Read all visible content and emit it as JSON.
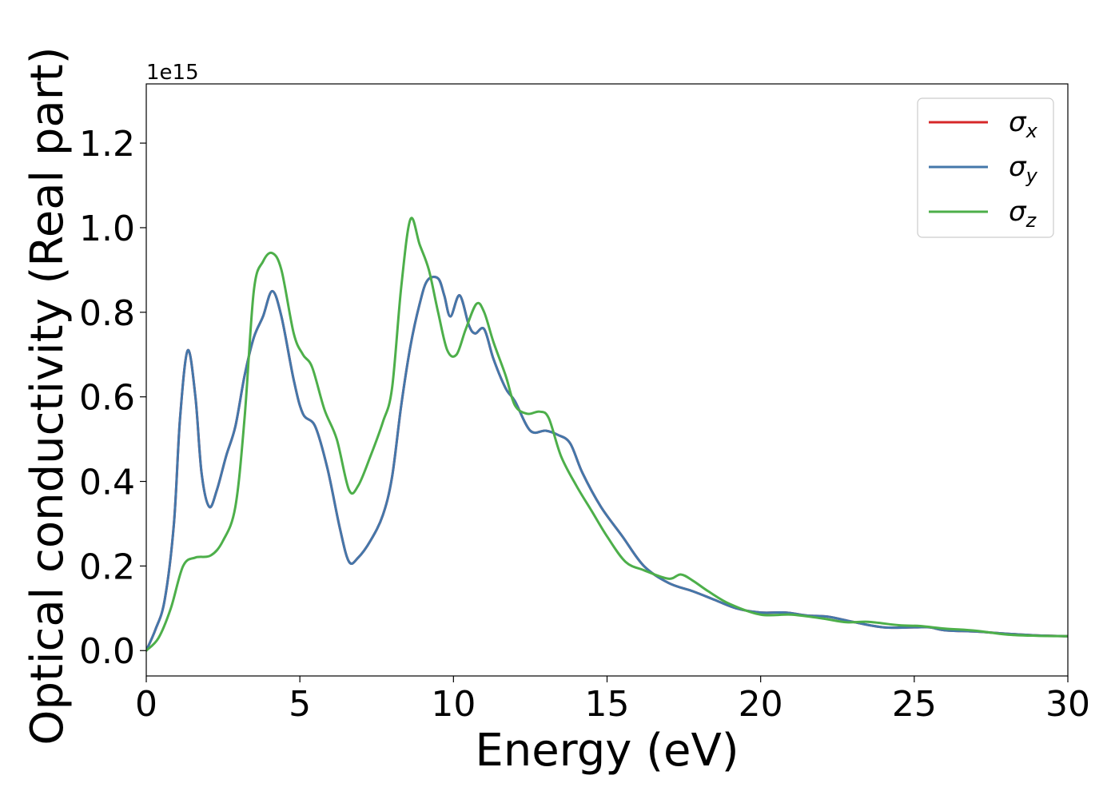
{
  "chart_data": {
    "type": "line",
    "xlabel": "Energy (eV)",
    "ylabel": "Optical conductivity (Real part)",
    "y_offset_text": "1e15",
    "xlim": [
      0,
      30
    ],
    "ylim": [
      -0.06,
      1.34
    ],
    "xticks": [
      0,
      5,
      10,
      15,
      20,
      25,
      30
    ],
    "yticks": [
      0.0,
      0.2,
      0.4,
      0.6,
      0.8,
      1.0,
      1.2
    ],
    "ytick_labels": [
      "0.0",
      "0.2",
      "0.4",
      "0.6",
      "0.8",
      "1.0",
      "1.2"
    ],
    "grid": false,
    "legend_position": "top-right",
    "series": [
      {
        "name": "σx",
        "symbol": "σ",
        "subscript": "x",
        "color": "#d62728",
        "points": [
          [
            0,
            0
          ],
          [
            0.3,
            0.05
          ],
          [
            0.6,
            0.12
          ],
          [
            0.9,
            0.3
          ],
          [
            1.1,
            0.55
          ],
          [
            1.35,
            0.71
          ],
          [
            1.6,
            0.6
          ],
          [
            1.8,
            0.42
          ],
          [
            2.05,
            0.34
          ],
          [
            2.3,
            0.38
          ],
          [
            2.6,
            0.46
          ],
          [
            2.9,
            0.53
          ],
          [
            3.2,
            0.65
          ],
          [
            3.5,
            0.74
          ],
          [
            3.8,
            0.79
          ],
          [
            4.1,
            0.85
          ],
          [
            4.4,
            0.79
          ],
          [
            4.8,
            0.64
          ],
          [
            5.1,
            0.56
          ],
          [
            5.5,
            0.53
          ],
          [
            5.9,
            0.43
          ],
          [
            6.3,
            0.29
          ],
          [
            6.6,
            0.21
          ],
          [
            6.9,
            0.22
          ],
          [
            7.3,
            0.26
          ],
          [
            7.7,
            0.32
          ],
          [
            8.0,
            0.41
          ],
          [
            8.3,
            0.58
          ],
          [
            8.6,
            0.72
          ],
          [
            8.9,
            0.82
          ],
          [
            9.15,
            0.875
          ],
          [
            9.5,
            0.88
          ],
          [
            9.7,
            0.84
          ],
          [
            9.9,
            0.79
          ],
          [
            10.2,
            0.84
          ],
          [
            10.5,
            0.77
          ],
          [
            10.7,
            0.75
          ],
          [
            11.0,
            0.76
          ],
          [
            11.3,
            0.69
          ],
          [
            11.7,
            0.62
          ],
          [
            12.0,
            0.59
          ],
          [
            12.5,
            0.52
          ],
          [
            13.0,
            0.52
          ],
          [
            13.4,
            0.51
          ],
          [
            13.8,
            0.49
          ],
          [
            14.2,
            0.42
          ],
          [
            14.8,
            0.34
          ],
          [
            15.5,
            0.27
          ],
          [
            16.2,
            0.2
          ],
          [
            17.0,
            0.16
          ],
          [
            17.8,
            0.14
          ],
          [
            18.5,
            0.12
          ],
          [
            19.2,
            0.1
          ],
          [
            20.0,
            0.09
          ],
          [
            20.8,
            0.09
          ],
          [
            21.5,
            0.083
          ],
          [
            22.2,
            0.08
          ],
          [
            23.0,
            0.068
          ],
          [
            24.0,
            0.055
          ],
          [
            25.0,
            0.055
          ],
          [
            25.5,
            0.055
          ],
          [
            26.0,
            0.048
          ],
          [
            27.0,
            0.045
          ],
          [
            28.0,
            0.04
          ],
          [
            29.0,
            0.036
          ],
          [
            30.0,
            0.034
          ]
        ]
      },
      {
        "name": "σy",
        "symbol": "σ",
        "subscript": "y",
        "color": "#4477aa",
        "points": [
          [
            0,
            0
          ],
          [
            0.3,
            0.05
          ],
          [
            0.6,
            0.12
          ],
          [
            0.9,
            0.3
          ],
          [
            1.1,
            0.55
          ],
          [
            1.35,
            0.71
          ],
          [
            1.6,
            0.6
          ],
          [
            1.8,
            0.42
          ],
          [
            2.05,
            0.34
          ],
          [
            2.3,
            0.38
          ],
          [
            2.6,
            0.46
          ],
          [
            2.9,
            0.53
          ],
          [
            3.2,
            0.65
          ],
          [
            3.5,
            0.74
          ],
          [
            3.8,
            0.79
          ],
          [
            4.1,
            0.85
          ],
          [
            4.4,
            0.79
          ],
          [
            4.8,
            0.64
          ],
          [
            5.1,
            0.56
          ],
          [
            5.5,
            0.53
          ],
          [
            5.9,
            0.43
          ],
          [
            6.3,
            0.29
          ],
          [
            6.6,
            0.21
          ],
          [
            6.9,
            0.22
          ],
          [
            7.3,
            0.26
          ],
          [
            7.7,
            0.32
          ],
          [
            8.0,
            0.41
          ],
          [
            8.3,
            0.58
          ],
          [
            8.6,
            0.72
          ],
          [
            8.9,
            0.82
          ],
          [
            9.15,
            0.875
          ],
          [
            9.5,
            0.88
          ],
          [
            9.7,
            0.84
          ],
          [
            9.9,
            0.79
          ],
          [
            10.2,
            0.84
          ],
          [
            10.5,
            0.77
          ],
          [
            10.7,
            0.75
          ],
          [
            11.0,
            0.76
          ],
          [
            11.3,
            0.69
          ],
          [
            11.7,
            0.62
          ],
          [
            12.0,
            0.59
          ],
          [
            12.5,
            0.52
          ],
          [
            13.0,
            0.52
          ],
          [
            13.4,
            0.51
          ],
          [
            13.8,
            0.49
          ],
          [
            14.2,
            0.42
          ],
          [
            14.8,
            0.34
          ],
          [
            15.5,
            0.27
          ],
          [
            16.2,
            0.2
          ],
          [
            17.0,
            0.16
          ],
          [
            17.8,
            0.14
          ],
          [
            18.5,
            0.12
          ],
          [
            19.2,
            0.1
          ],
          [
            20.0,
            0.09
          ],
          [
            20.8,
            0.09
          ],
          [
            21.5,
            0.083
          ],
          [
            22.2,
            0.08
          ],
          [
            23.0,
            0.068
          ],
          [
            24.0,
            0.055
          ],
          [
            25.0,
            0.055
          ],
          [
            25.5,
            0.055
          ],
          [
            26.0,
            0.048
          ],
          [
            27.0,
            0.045
          ],
          [
            28.0,
            0.04
          ],
          [
            29.0,
            0.036
          ],
          [
            30.0,
            0.034
          ]
        ]
      },
      {
        "name": "σz",
        "symbol": "σ",
        "subscript": "z",
        "color": "#4daf4a",
        "points": [
          [
            0,
            0
          ],
          [
            0.4,
            0.03
          ],
          [
            0.8,
            0.1
          ],
          [
            1.2,
            0.2
          ],
          [
            1.6,
            0.22
          ],
          [
            2.1,
            0.225
          ],
          [
            2.5,
            0.26
          ],
          [
            2.9,
            0.34
          ],
          [
            3.2,
            0.55
          ],
          [
            3.5,
            0.85
          ],
          [
            3.8,
            0.92
          ],
          [
            4.1,
            0.94
          ],
          [
            4.4,
            0.9
          ],
          [
            4.8,
            0.75
          ],
          [
            5.1,
            0.7
          ],
          [
            5.4,
            0.67
          ],
          [
            5.8,
            0.57
          ],
          [
            6.2,
            0.5
          ],
          [
            6.6,
            0.38
          ],
          [
            6.9,
            0.39
          ],
          [
            7.3,
            0.46
          ],
          [
            7.7,
            0.54
          ],
          [
            8.0,
            0.62
          ],
          [
            8.3,
            0.86
          ],
          [
            8.6,
            1.02
          ],
          [
            8.9,
            0.96
          ],
          [
            9.2,
            0.9
          ],
          [
            9.5,
            0.8
          ],
          [
            9.8,
            0.71
          ],
          [
            10.1,
            0.7
          ],
          [
            10.4,
            0.76
          ],
          [
            10.75,
            0.82
          ],
          [
            11.0,
            0.8
          ],
          [
            11.3,
            0.73
          ],
          [
            11.7,
            0.65
          ],
          [
            12.0,
            0.58
          ],
          [
            12.4,
            0.56
          ],
          [
            12.8,
            0.565
          ],
          [
            13.1,
            0.55
          ],
          [
            13.5,
            0.46
          ],
          [
            14.0,
            0.39
          ],
          [
            14.5,
            0.33
          ],
          [
            15.0,
            0.27
          ],
          [
            15.6,
            0.21
          ],
          [
            16.2,
            0.19
          ],
          [
            17.0,
            0.17
          ],
          [
            17.4,
            0.18
          ],
          [
            17.8,
            0.165
          ],
          [
            18.3,
            0.14
          ],
          [
            19.0,
            0.11
          ],
          [
            20.0,
            0.085
          ],
          [
            21.0,
            0.085
          ],
          [
            22.0,
            0.076
          ],
          [
            22.8,
            0.067
          ],
          [
            23.5,
            0.068
          ],
          [
            24.5,
            0.06
          ],
          [
            25.2,
            0.058
          ],
          [
            26.0,
            0.052
          ],
          [
            27.0,
            0.047
          ],
          [
            28.0,
            0.038
          ],
          [
            29.0,
            0.035
          ],
          [
            30.0,
            0.034
          ]
        ]
      }
    ]
  }
}
